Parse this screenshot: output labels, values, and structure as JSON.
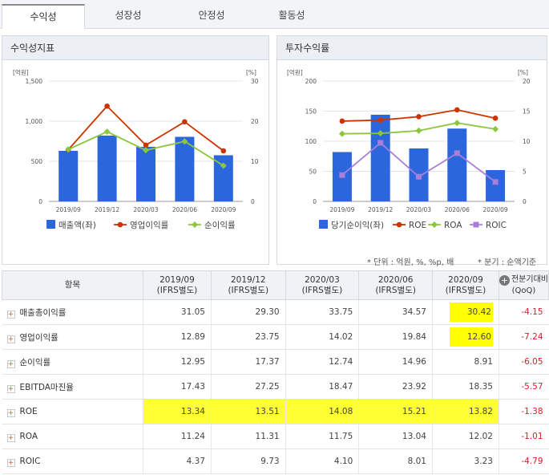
{
  "tabs": [
    "수익성",
    "성장성",
    "안정성",
    "활동성"
  ],
  "left_panel": {
    "title": "수익성지표"
  },
  "right_panel": {
    "title": "투자수익률"
  },
  "note_left": "* 단위 : 억원, %, %p, 배",
  "note_right": "* 분기 : 순액기준",
  "table": {
    "col_item": "항목",
    "col_last_line1": "전분기대비",
    "col_last_line2": "(QoQ)",
    "periods": [
      {
        "date": "2019/09",
        "basis": "(IFRS별도)"
      },
      {
        "date": "2019/12",
        "basis": "(IFRS별도)"
      },
      {
        "date": "2020/03",
        "basis": "(IFRS별도)"
      },
      {
        "date": "2020/06",
        "basis": "(IFRS별도)"
      },
      {
        "date": "2020/09",
        "basis": "(IFRS별도)"
      }
    ],
    "rows": [
      {
        "name": "매출총이익률",
        "values": [
          "31.05",
          "29.30",
          "33.75",
          "34.57",
          "30.42"
        ],
        "qoq": "-4.15"
      },
      {
        "name": "영업이익률",
        "values": [
          "12.89",
          "23.75",
          "14.02",
          "19.84",
          "12.60"
        ],
        "qoq": "-7.24"
      },
      {
        "name": "순이익률",
        "values": [
          "12.95",
          "17.37",
          "12.74",
          "14.96",
          "8.91"
        ],
        "qoq": "-6.05"
      },
      {
        "name": "EBITDA마진율",
        "values": [
          "17.43",
          "27.25",
          "18.47",
          "23.92",
          "18.35"
        ],
        "qoq": "-5.57"
      },
      {
        "name": "ROE",
        "values": [
          "13.34",
          "13.51",
          "14.08",
          "15.21",
          "13.82"
        ],
        "qoq": "-1.38"
      },
      {
        "name": "ROA",
        "values": [
          "11.24",
          "11.31",
          "11.75",
          "13.04",
          "12.02"
        ],
        "qoq": "-1.01"
      },
      {
        "name": "ROIC",
        "values": [
          "4.37",
          "9.73",
          "4.10",
          "8.01",
          "3.23"
        ],
        "qoq": "-4.79"
      }
    ]
  },
  "colors": {
    "bar": "#2b66dd",
    "line1": "#cc3300",
    "line2": "#8cc63f",
    "line3": "#a77fd9",
    "highlight": "#ffff00",
    "negative": "#d9202a"
  },
  "chart_data": [
    {
      "type": "bar",
      "title": "수익성지표",
      "categories": [
        "2019/09",
        "2019/12",
        "2020/03",
        "2020/06",
        "2020/09"
      ],
      "left_unit": "[억원]",
      "right_unit": "[%]",
      "ylim_left": [
        0,
        1500
      ],
      "ylim_right": [
        0,
        30
      ],
      "yticks_left": [
        "0",
        "500",
        "1,000",
        "1,500"
      ],
      "yticks_right": [
        "0",
        "10",
        "20",
        "30"
      ],
      "series": [
        {
          "name": "매출액(좌)",
          "kind": "bar",
          "axis": "left",
          "color": "#2b66dd",
          "values": [
            630,
            820,
            680,
            805,
            575
          ]
        },
        {
          "name": "영업이익률",
          "kind": "line",
          "axis": "right",
          "color": "#cc3300",
          "marker": "circle",
          "values": [
            12.89,
            23.75,
            14.02,
            19.84,
            12.6
          ]
        },
        {
          "name": "순이익률",
          "kind": "line",
          "axis": "right",
          "color": "#8cc63f",
          "marker": "diamond",
          "values": [
            12.95,
            17.37,
            12.74,
            14.96,
            8.91
          ]
        }
      ]
    },
    {
      "type": "bar",
      "title": "투자수익률",
      "categories": [
        "2019/09",
        "2019/12",
        "2020/03",
        "2020/06",
        "2020/09"
      ],
      "left_unit": "[억원]",
      "right_unit": "[%]",
      "ylim_left": [
        0,
        200
      ],
      "ylim_right": [
        0,
        20
      ],
      "yticks_left": [
        "0",
        "50",
        "100",
        "150",
        "200"
      ],
      "yticks_right": [
        "0",
        "5",
        "10",
        "15",
        "20"
      ],
      "series": [
        {
          "name": "당기순이익(좌)",
          "kind": "bar",
          "axis": "left",
          "color": "#2b66dd",
          "values": [
            82,
            144,
            88,
            121,
            52
          ]
        },
        {
          "name": "ROE",
          "kind": "line",
          "axis": "right",
          "color": "#cc3300",
          "marker": "circle",
          "values": [
            13.34,
            13.51,
            14.08,
            15.21,
            13.82
          ]
        },
        {
          "name": "ROA",
          "kind": "line",
          "axis": "right",
          "color": "#8cc63f",
          "marker": "diamond",
          "values": [
            11.24,
            11.31,
            11.75,
            13.04,
            12.02
          ]
        },
        {
          "name": "ROIC",
          "kind": "line",
          "axis": "right",
          "color": "#a77fd9",
          "marker": "square",
          "values": [
            4.37,
            9.73,
            4.1,
            8.01,
            3.23
          ]
        }
      ]
    }
  ]
}
